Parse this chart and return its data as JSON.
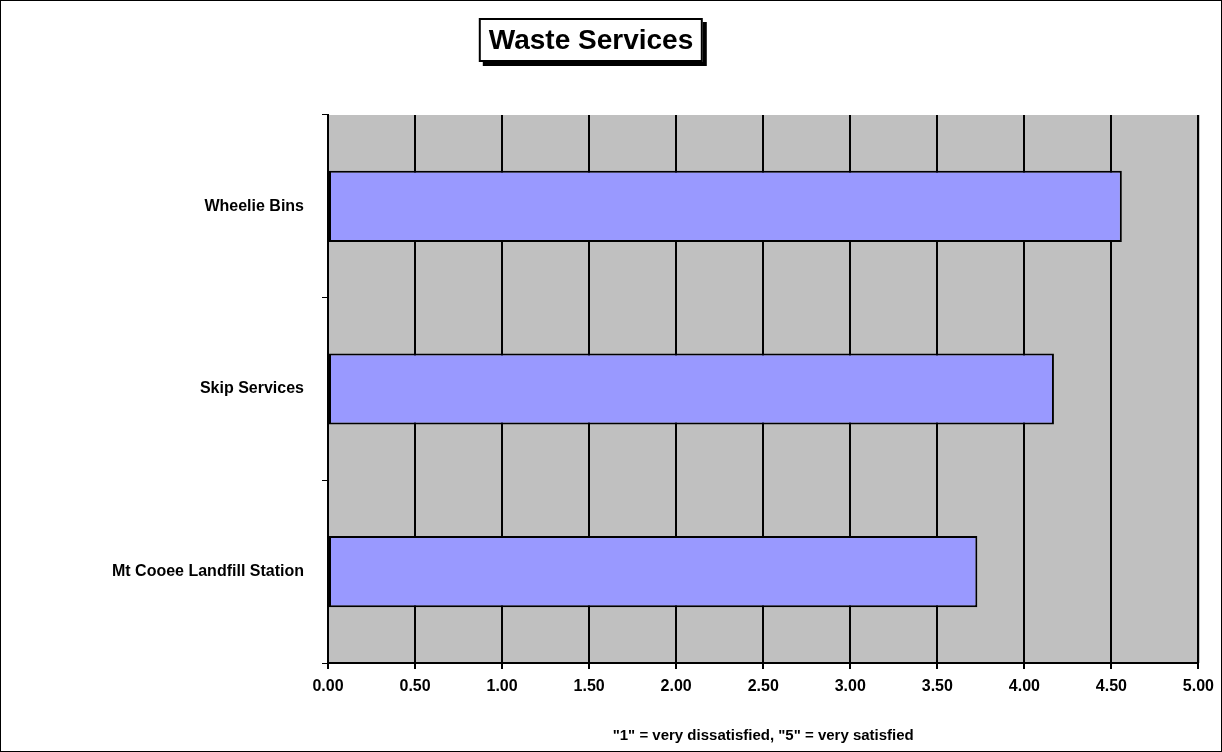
{
  "chart_data": {
    "type": "bar",
    "orientation": "horizontal",
    "title": "Waste Services",
    "xlabel": "\"1\" = very dissatisfied, \"5\" = very satisfied",
    "categories": [
      "Wheelie Bins",
      "Skip Services",
      "Mt Cooee Landfill Station"
    ],
    "values": [
      4.56,
      4.17,
      3.73
    ],
    "color": "#9999ff",
    "xlim": [
      0,
      5
    ],
    "xticks": [
      {
        "value": 0,
        "label": "0.00"
      },
      {
        "value": 0.5,
        "label": "0.50"
      },
      {
        "value": 1,
        "label": "1.00"
      },
      {
        "value": 1.5,
        "label": "1.50"
      },
      {
        "value": 2,
        "label": "2.00"
      },
      {
        "value": 2.5,
        "label": "2.50"
      },
      {
        "value": 3,
        "label": "3.00"
      },
      {
        "value": 3.5,
        "label": "3.50"
      },
      {
        "value": 4,
        "label": "4.00"
      },
      {
        "value": 4.5,
        "label": "4.50"
      },
      {
        "value": 5,
        "label": "5.00"
      }
    ],
    "grid": "x"
  }
}
